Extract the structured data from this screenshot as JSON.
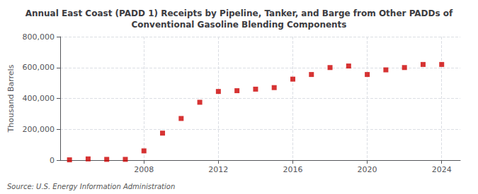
{
  "chart_data": {
    "type": "scatter",
    "title": "Annual East Coast (PADD 1) Receipts by Pipeline, Tanker, and Barge from Other PADDs of\nConventional Gasoline Blending Components",
    "ylabel": "Thousand Barrels",
    "source": "Source: U.S. Energy Information Administration",
    "x": [
      2004,
      2005,
      2006,
      2007,
      2008,
      2009,
      2010,
      2011,
      2012,
      2013,
      2014,
      2015,
      2016,
      2017,
      2018,
      2019,
      2020,
      2021,
      2022,
      2023,
      2024
    ],
    "values": [
      2000,
      8000,
      5000,
      5000,
      60000,
      175000,
      270000,
      375000,
      445000,
      450000,
      460000,
      470000,
      525000,
      555000,
      600000,
      610000,
      555000,
      585000,
      600000,
      620000,
      620000
    ],
    "color": "#cc0000",
    "marker": "square",
    "xlim": [
      2003.5,
      2025
    ],
    "xticks": [
      2008,
      2012,
      2016,
      2020,
      2024
    ],
    "ylim": [
      0,
      800000
    ],
    "yticks": [
      0,
      {
        "value": 200000,
        "label": "200,000"
      },
      {
        "value": 400000,
        "label": "400,000"
      },
      {
        "value": 600000,
        "label": "600,000"
      },
      {
        "value": 800000,
        "label": "800,000"
      }
    ],
    "grid": true
  }
}
